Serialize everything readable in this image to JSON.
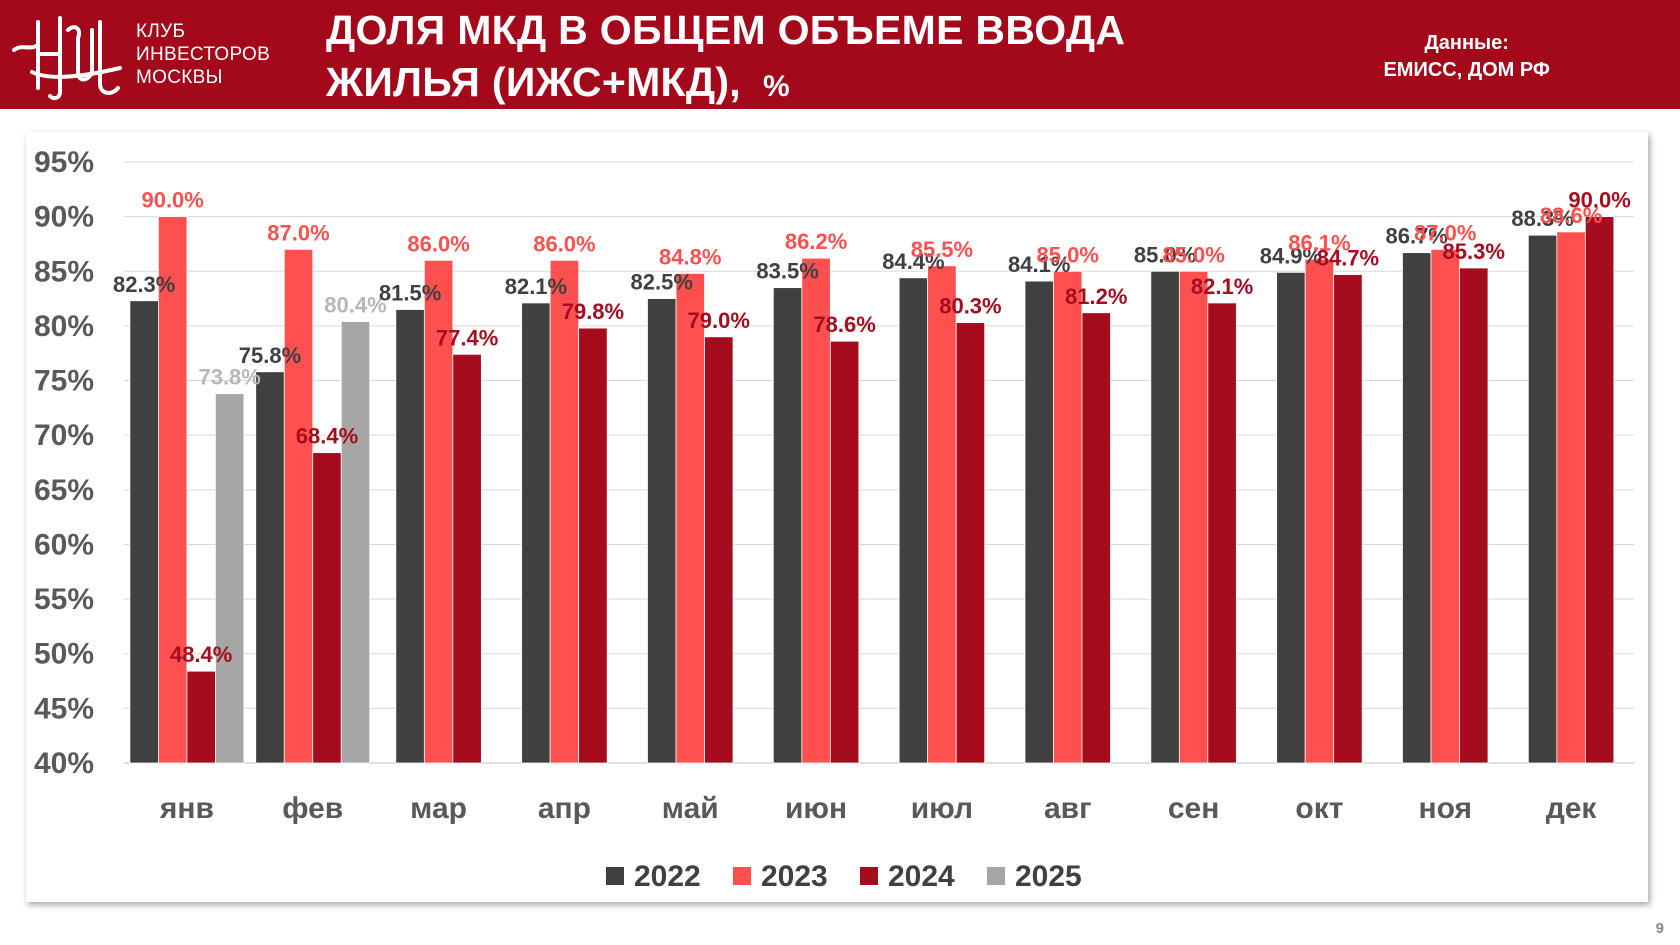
{
  "header": {
    "club_name": [
      "КЛУБ",
      "ИНВЕСТОРОВ",
      "МОСКВЫ"
    ],
    "title_line1": "ДОЛЯ МКД В ОБЩЕМ ОБЪЕМЕ ВВОДА",
    "title_line2": "ЖИЛЬЯ (ИЖС+МКД),",
    "title_unit": "%",
    "source_label": "Данные:",
    "source_value": "ЕМИСС, ДОМ РФ"
  },
  "page_number": "9",
  "colors": {
    "header_bg": "#a3091a",
    "s2022": "#404040",
    "s2023": "#ff5050",
    "s2024": "#a50d1e",
    "s2025": "#a6a6a6"
  },
  "chart_data": {
    "type": "bar",
    "categories": [
      "янв",
      "фев",
      "мар",
      "апр",
      "май",
      "июн",
      "июл",
      "авг",
      "сен",
      "окт",
      "ноя",
      "дек"
    ],
    "series": [
      {
        "name": "2022",
        "color": "#404040",
        "label_color": "#404040",
        "values": [
          82.3,
          75.8,
          81.5,
          82.1,
          82.5,
          83.5,
          84.4,
          84.1,
          85.0,
          84.9,
          86.7,
          88.3
        ]
      },
      {
        "name": "2023",
        "color": "#ff5050",
        "label_color": "#ff5050",
        "values": [
          90.0,
          87.0,
          86.0,
          86.0,
          84.8,
          86.2,
          85.5,
          85.0,
          85.0,
          86.1,
          87.0,
          88.6
        ]
      },
      {
        "name": "2024",
        "color": "#a50d1e",
        "label_color": "#a50d1e",
        "values": [
          48.4,
          68.4,
          77.4,
          79.8,
          79.0,
          78.6,
          80.3,
          81.2,
          82.1,
          84.7,
          85.3,
          90.0
        ]
      },
      {
        "name": "2025",
        "color": "#a6a6a6",
        "label_color": "#b7b7b7",
        "values": [
          73.8,
          80.4,
          null,
          null,
          null,
          null,
          null,
          null,
          null,
          null,
          null,
          null
        ]
      }
    ],
    "data_labels": [
      [
        "82.3%",
        "75.8%",
        "81.5%",
        "82.1%",
        "82.5%",
        "83.5%",
        "84.4%",
        "84.1%",
        "85.0%",
        "84.9%",
        "86.7%",
        "88.3%"
      ],
      [
        "90.0%",
        "87.0%",
        "86.0%",
        "86.0%",
        "84.8%",
        "86.2%",
        "85.5%",
        "85.0%",
        "85.0%",
        "86.1%",
        "87.0%",
        "88.6%"
      ],
      [
        "48.4%",
        "68.4%",
        "77.4%",
        "79.8%",
        "79.0%",
        "78.6%",
        "80.3%",
        "81.2%",
        "82.1%",
        "84.7%",
        "85.3%",
        "90.0%"
      ],
      [
        "73.8%",
        "80.4%",
        null,
        null,
        null,
        null,
        null,
        null,
        null,
        null,
        null,
        null
      ]
    ],
    "ylim": [
      40,
      95
    ],
    "yticks": [
      "40%",
      "45%",
      "50%",
      "55%",
      "60%",
      "65%",
      "70%",
      "75%",
      "80%",
      "85%",
      "90%",
      "95%"
    ],
    "grid": true,
    "legend_position": "bottom",
    "title": "",
    "xlabel": "",
    "ylabel": ""
  }
}
